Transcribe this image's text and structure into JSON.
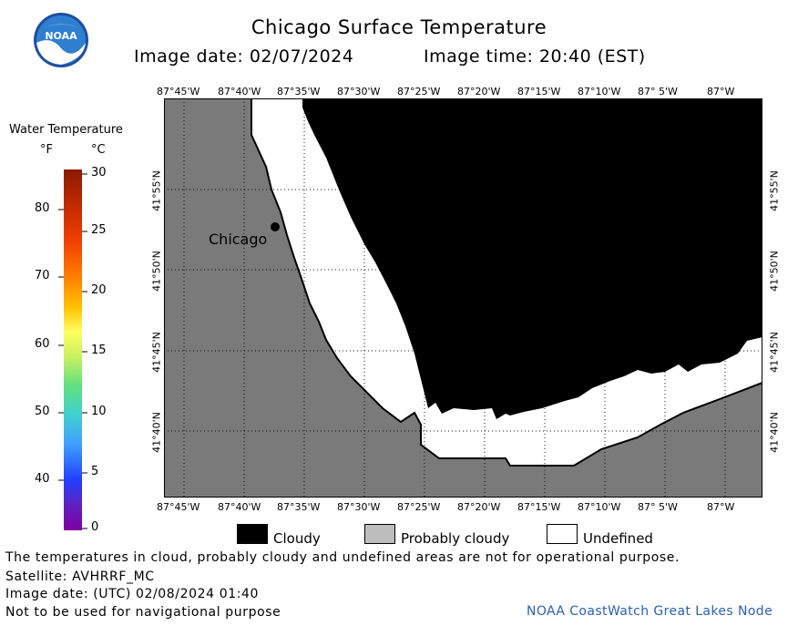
{
  "header": {
    "title": "Chicago Surface Temperature",
    "image_date_line": "Image date: 02/07/2024",
    "image_time_line": "Image time: 20:40 (EST)",
    "logo_text": "NOAA"
  },
  "colorbar": {
    "title": "Water Temperature",
    "unit_f": "°F",
    "unit_c": "°C",
    "f_ticks": [
      "80",
      "70",
      "60",
      "50",
      "40"
    ],
    "c_ticks": [
      "30",
      "25",
      "20",
      "15",
      "10",
      "5",
      "0"
    ]
  },
  "map": {
    "lon_labels": [
      "87°45'W",
      "87°40'W",
      "87°35'W",
      "87°30'W",
      "87°25'W",
      "87°20'W",
      "87°15'W",
      "87°10'W",
      "87° 5'W",
      "87°W"
    ],
    "lat_labels": [
      "41°55'N",
      "41°50'N",
      "41°45'N",
      "41°40'N"
    ],
    "city_label": "Chicago",
    "land_color": "#7a7a7a",
    "cloud_color": "#000000",
    "undefined_color": "#ffffff"
  },
  "legend": {
    "cloudy": "Cloudy",
    "probably_cloudy": "Probably cloudy",
    "undefined": "Undefined"
  },
  "footer": {
    "note": "The temperatures in cloud, probably cloudy and undefined areas are not for operational purpose.",
    "satellite": "Satellite: AVHRRF_MC",
    "utc_date": "Image date: (UTC) 02/08/2024  01:40",
    "navigation": "Not to be used for navigational purpose",
    "credit": "NOAA CoastWatch Great Lakes Node"
  }
}
